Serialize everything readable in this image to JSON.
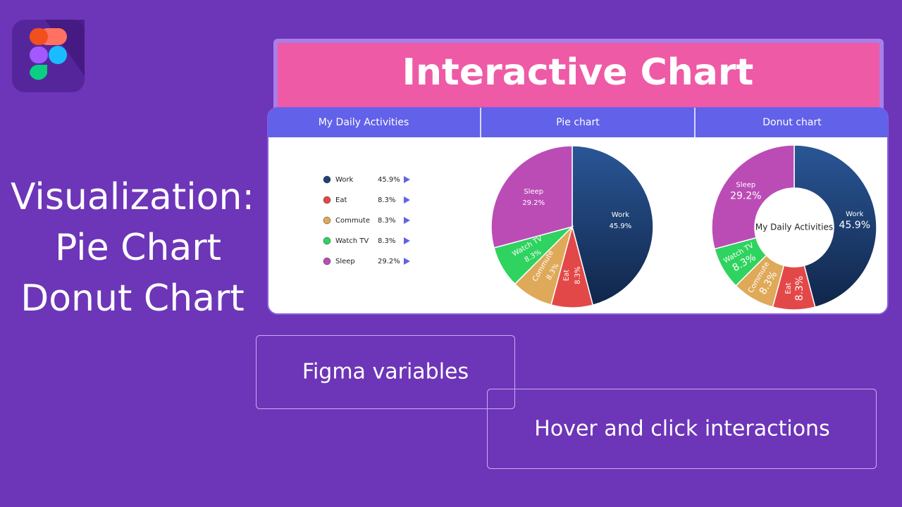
{
  "header": {
    "title": "Interactive Chart"
  },
  "side_text": [
    "Visualization:",
    "Pie Chart",
    "Donut Chart"
  ],
  "tabs": [
    "My Daily Activities",
    "Pie chart",
    "Donut chart"
  ],
  "chart_data": [
    {
      "type": "pie",
      "categories": [
        "Work",
        "Eat",
        "Commute",
        "Watch TV",
        "Sleep"
      ],
      "values": [
        45.9,
        8.3,
        8.3,
        8.3,
        29.2
      ],
      "value_labels": [
        "45.9%",
        "8.3%",
        "8.3%",
        "8.3%",
        "29.2%"
      ],
      "colors": [
        "#1f4275",
        "#e34848",
        "#dfa95a",
        "#2fd35f",
        "#bb4cb6"
      ]
    },
    {
      "type": "donut",
      "center_label": "My Daily Activities",
      "categories": [
        "Work",
        "Eat",
        "Commute",
        "Watch TV",
        "Sleep"
      ],
      "values": [
        45.9,
        8.3,
        8.3,
        8.3,
        29.2
      ],
      "value_labels": [
        "45.9%",
        "8.3%",
        "8.3%",
        "8.3%",
        "29.2%"
      ],
      "colors": [
        "#1f4275",
        "#e34848",
        "#dfa95a",
        "#2fd35f",
        "#bb4cb6"
      ]
    }
  ],
  "callouts": [
    "Figma variables",
    "Hover and click interactions"
  ]
}
